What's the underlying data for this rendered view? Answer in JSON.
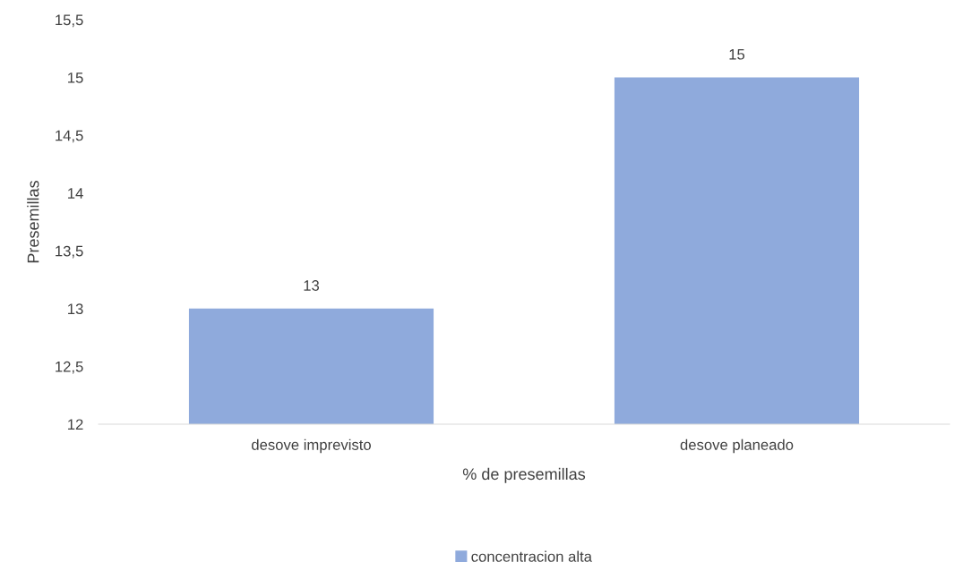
{
  "chart_data": {
    "type": "bar",
    "xlabel": "% de presemillas",
    "ylabel": "Presemillas",
    "categories": [
      "desove imprevisto",
      "desove planeado"
    ],
    "series": [
      {
        "name": "concentracion alta",
        "color": "#8faadc",
        "values": [
          13,
          15
        ]
      }
    ],
    "ylim": [
      12,
      15.5
    ],
    "yticks": [
      12,
      {
        "value": 12.5,
        "label": "12,5"
      },
      13,
      {
        "value": 13.5,
        "label": "13,5"
      },
      14,
      {
        "value": 14.5,
        "label": "14,5"
      },
      15,
      {
        "value": 15.5,
        "label": "15,5"
      }
    ],
    "data_labels": true,
    "grid": false,
    "legend": "bottom"
  }
}
